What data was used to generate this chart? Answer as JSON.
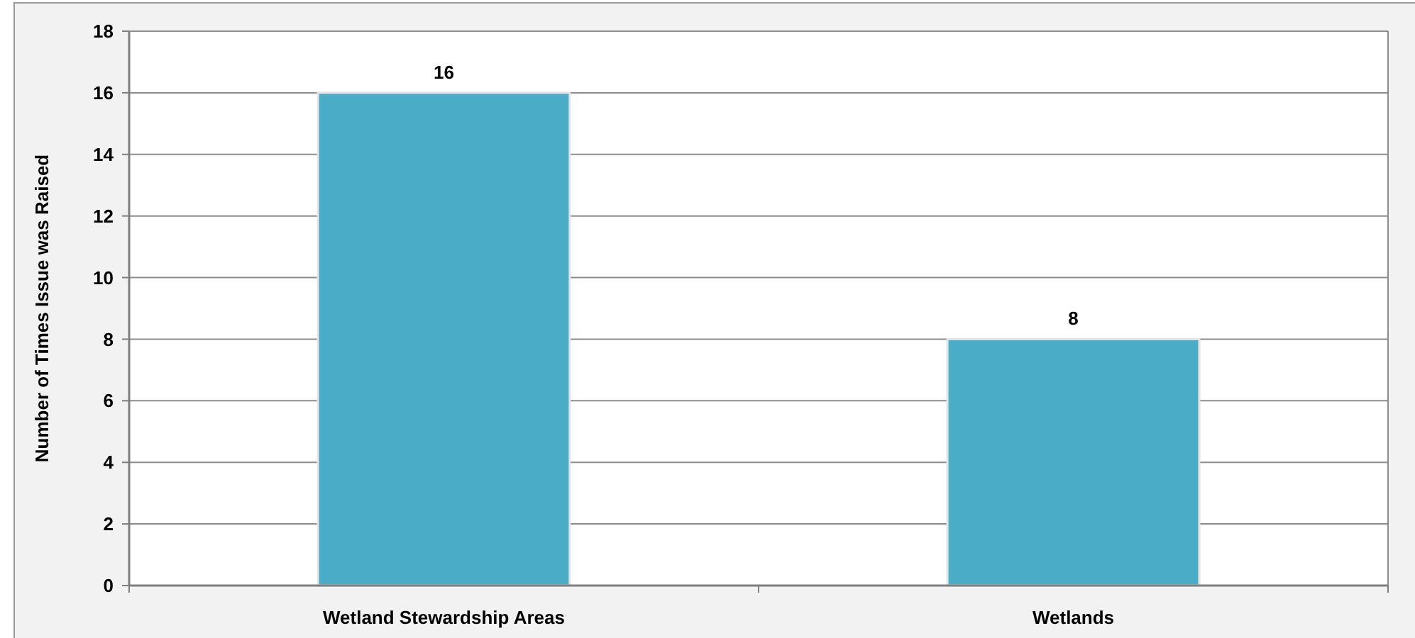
{
  "chart_data": {
    "type": "bar",
    "ylabel": "Number of Times Issue was Raised",
    "categories": [
      "Wetland Stewardship Areas",
      "Wetlands"
    ],
    "values": [
      16,
      8
    ],
    "color": "#4aacc6",
    "ylim": [
      0,
      18
    ],
    "yticks": [
      0,
      2,
      4,
      6,
      8,
      10,
      12,
      14,
      16,
      18
    ],
    "grid": "y",
    "data_labels": true
  }
}
